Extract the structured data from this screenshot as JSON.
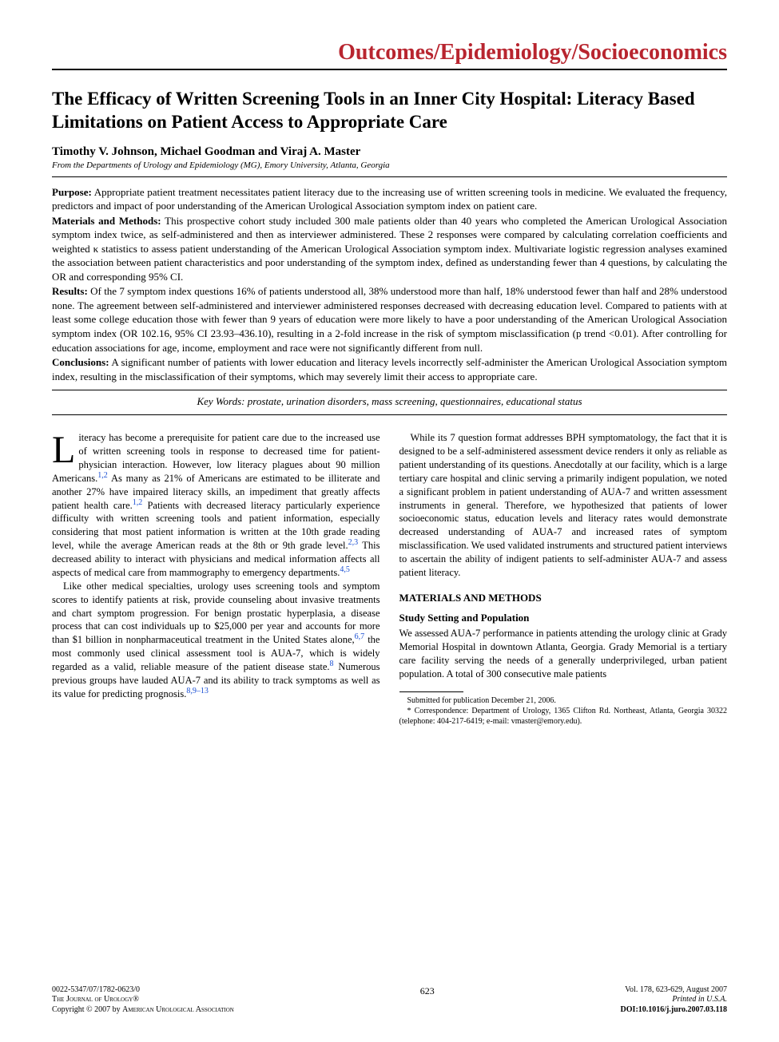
{
  "section_header": "Outcomes/Epidemiology/Socioeconomics",
  "colors": {
    "accent": "#b8252f",
    "citation": "#1a4fd4",
    "text": "#000000",
    "background": "#ffffff"
  },
  "typography": {
    "body_family": "Times New Roman",
    "section_header_size": 28,
    "title_size": 23,
    "authors_size": 15,
    "body_size": 12.5,
    "footer_size": 10
  },
  "title": "The Efficacy of Written Screening Tools in an Inner City Hospital: Literacy Based Limitations on Patient Access to Appropriate Care",
  "authors": "Timothy V. Johnson, Michael Goodman and Viraj A. Master",
  "affiliation": "From the Departments of Urology and Epidemiology (MG), Emory University, Atlanta, Georgia",
  "abstract": {
    "purpose_label": "Purpose:",
    "purpose": " Appropriate patient treatment necessitates patient literacy due to the increasing use of written screening tools in medicine. We evaluated the frequency, predictors and impact of poor understanding of the American Urological Association symptom index on patient care.",
    "methods_label": "Materials and Methods:",
    "methods": " This prospective cohort study included 300 male patients older than 40 years who completed the American Urological Association symptom index twice, as self-administered and then as interviewer administered. These 2 responses were compared by calculating correlation coefficients and weighted κ statistics to assess patient understanding of the American Urological Association symptom index. Multivariate logistic regression analyses examined the association between patient characteristics and poor understanding of the symptom index, defined as understanding fewer than 4 questions, by calculating the OR and corresponding 95% CI.",
    "results_label": "Results:",
    "results": " Of the 7 symptom index questions 16% of patients understood all, 38% understood more than half, 18% understood fewer than half and 28% understood none. The agreement between self-administered and interviewer administered responses decreased with decreasing education level. Compared to patients with at least some college education those with fewer than 9 years of education were more likely to have a poor understanding of the American Urological Association symptom index (OR 102.16, 95% CI 23.93–436.10), resulting in a 2-fold increase in the risk of symptom misclassification (p trend <0.01). After controlling for education associations for age, income, employment and race were not significantly different from null.",
    "conclusions_label": "Conclusions:",
    "conclusions": " A significant number of patients with lower education and literacy levels incorrectly self-administer the American Urological Association symptom index, resulting in the misclassification of their symptoms, which may severely limit their access to appropriate care."
  },
  "keywords": "Key Words: prostate, urination disorders, mass screening, questionnaires, educational status",
  "body": {
    "dropcap": "L",
    "p1a": "iteracy has become a prerequisite for patient care due to the increased use of written screening tools in response to decreased time for patient-physician interaction. However, low literacy plagues about 90 million Americans.",
    "c1": "1,2",
    "p1b": " As many as 21% of Americans are estimated to be illiterate and another 27% have impaired literacy skills, an impediment that greatly affects patient health care.",
    "c2": "1,2",
    "p1c": " Patients with decreased literacy particularly experience difficulty with written screening tools and patient information, especially considering that most patient information is written at the 10th grade reading level, while the average American reads at the 8th or 9th grade level.",
    "c3": "2,3",
    "p1d": " This decreased ability to interact with physicians and medical information affects all aspects of medical care from mammography to emergency departments.",
    "c4": "4,5",
    "p2a": "Like other medical specialties, urology uses screening tools and symptom scores to identify patients at risk, provide counseling about invasive treatments and chart symptom progression. For benign prostatic hyperplasia, a disease process that can cost individuals up to $25,000 per year and accounts for more than $1 billion in nonpharmaceutical treatment in the United States alone,",
    "c5": "6,7",
    "p2b": " the most commonly used clinical assessment tool is AUA-7, which is widely regarded as a valid, reliable measure of the patient disease state.",
    "c6": "8",
    "p2c": " Numerous previous groups have lauded AUA-7 and its ability to track symptoms as well as its value for predicting prognosis.",
    "c7": "8,9–13",
    "p3": "While its 7 question format addresses BPH symptomatology, the fact that it is designed to be a self-administered assessment device renders it only as reliable as patient understanding of its questions. Anecdotally at our facility, which is a large tertiary care hospital and clinic serving a primarily indigent population, we noted a significant problem in patient understanding of AUA-7 and written assessment instruments in general. Therefore, we hypothesized that patients of lower socioeconomic status, education levels and literacy rates would demonstrate decreased understanding of AUA-7 and increased rates of symptom misclassification. We used validated instruments and structured patient interviews to ascertain the ability of indigent patients to self-administer AUA-7 and assess patient literacy.",
    "methods_heading": "MATERIALS AND METHODS",
    "sub1_heading": "Study Setting and Population",
    "p4": "We assessed AUA-7 performance in patients attending the urology clinic at Grady Memorial Hospital in downtown Atlanta, Georgia. Grady Memorial is a tertiary care facility serving the needs of a generally underprivileged, urban patient population. A total of 300 consecutive male patients"
  },
  "footnotes": {
    "f1": "Submitted for publication December 21, 2006.",
    "f2": "* Correspondence: Department of Urology, 1365 Clifton Rd. Northeast, Atlanta, Georgia 30322 (telephone: 404-217-6419; e-mail: vmaster@emory.edu)."
  },
  "footer": {
    "left1": "0022-5347/07/1782-0623/0",
    "left2_a": "The Journal of Urology",
    "left2_b": "®",
    "left3": "Copyright © 2007 by American Urological Association",
    "page_number": "623",
    "right1": "Vol. 178, 623-629, August 2007",
    "right2": "Printed in U.S.A.",
    "right3_label": "DOI:",
    "right3_value": "10.1016/j.juro.2007.03.118"
  }
}
